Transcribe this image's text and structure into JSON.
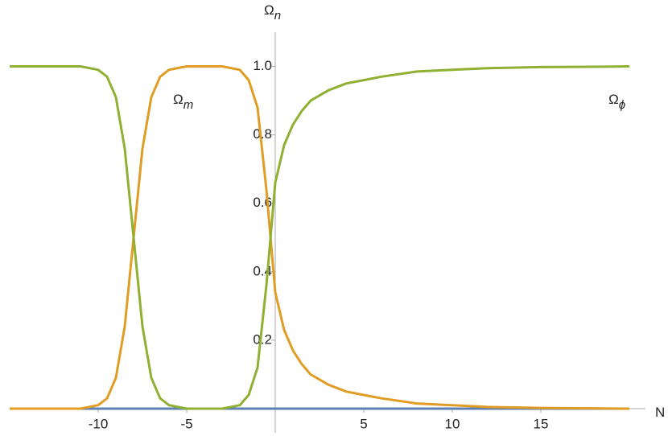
{
  "chart_data": {
    "type": "line",
    "x_label": {
      "base": "N"
    },
    "y_label": {
      "base": "Ω",
      "sub": "n"
    },
    "annotations": [
      {
        "base": "Ω",
        "sub": "m",
        "x": -5.2,
        "y": 0.9
      },
      {
        "base": "Ω",
        "sub": "ϕ",
        "x": 19.3,
        "y": 0.9
      }
    ],
    "x": [
      -15,
      -14,
      -13,
      -12,
      -11,
      -10,
      -9.5,
      -9,
      -8.5,
      -8,
      -7.5,
      -7,
      -6.5,
      -6,
      -5,
      -4,
      -3,
      -2,
      -1.5,
      -1,
      -0.5,
      0,
      0.5,
      1,
      1.5,
      2,
      3,
      4,
      5,
      6,
      8,
      10,
      12,
      15,
      18,
      20
    ],
    "series": [
      {
        "color": "#5e81b5",
        "values": [
          0,
          0,
          0,
          0,
          0,
          0,
          0,
          0,
          0,
          0,
          0,
          0,
          0,
          0,
          0,
          0,
          0,
          0,
          0,
          0,
          0,
          0,
          0,
          0,
          0,
          0,
          0,
          0,
          0,
          0,
          0,
          0,
          0,
          0,
          0,
          0
        ]
      },
      {
        "color": "#e19c24",
        "values": [
          0,
          0,
          0,
          0,
          0,
          0.01,
          0.03,
          0.09,
          0.24,
          0.5,
          0.76,
          0.91,
          0.97,
          0.99,
          1,
          1,
          1,
          0.99,
          0.96,
          0.88,
          0.64,
          0.34,
          0.23,
          0.17,
          0.13,
          0.1,
          0.07,
          0.05,
          0.04,
          0.03,
          0.015,
          0.01,
          0.005,
          0.002,
          0.001,
          0
        ]
      },
      {
        "color": "#8fb032",
        "values": [
          1,
          1,
          1,
          1,
          1,
          0.99,
          0.97,
          0.91,
          0.76,
          0.5,
          0.24,
          0.09,
          0.03,
          0.01,
          0,
          0,
          0,
          0.01,
          0.04,
          0.12,
          0.36,
          0.66,
          0.77,
          0.83,
          0.87,
          0.9,
          0.93,
          0.95,
          0.96,
          0.97,
          0.985,
          0.99,
          0.995,
          0.998,
          0.999,
          1
        ]
      }
    ],
    "xlim": [
      -15,
      20
    ],
    "ylim": [
      0,
      1.1
    ],
    "xticks": [
      -10,
      -5,
      5,
      10,
      15
    ],
    "yticks": [
      0.2,
      0.4,
      0.6,
      0.8,
      {
        "value": 1,
        "label": "1.0"
      }
    ]
  }
}
